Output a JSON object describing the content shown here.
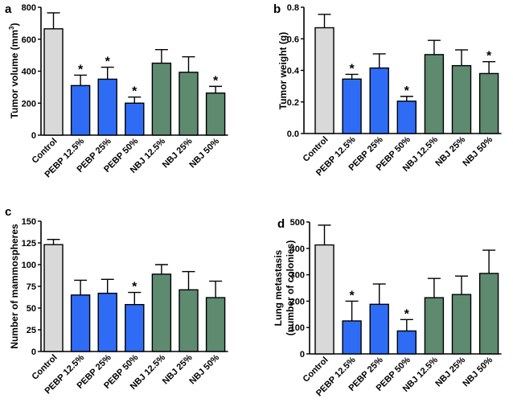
{
  "colors": {
    "control": "#d9d9d9",
    "pebp": "#2e6cf6",
    "nbj": "#5e8a70"
  },
  "chart_data": [
    {
      "type": "bar",
      "panel": "a",
      "title": "",
      "xlabel": "",
      "ylabel": "Tumor volume (mm3)",
      "ylabel_main": "Tumor volume (mm",
      "ylabel_sup": "3",
      "ylabel_end": ")",
      "ylim": [
        0,
        800
      ],
      "yticks": [
        0,
        200,
        400,
        600,
        800
      ],
      "categories": [
        "Control",
        "PEBP 12.5%",
        "PEBP 25%",
        "PEBP 50%",
        "NBJ 12.5%",
        "NBJ 25%",
        "NBJ 50%"
      ],
      "groups": [
        "control",
        "pebp",
        "pebp",
        "pebp",
        "nbj",
        "nbj",
        "nbj"
      ],
      "values": [
        665,
        310,
        350,
        200,
        450,
        393,
        263
      ],
      "errors": [
        100,
        65,
        75,
        38,
        85,
        97,
        42
      ],
      "significant": [
        false,
        true,
        true,
        true,
        false,
        false,
        true
      ]
    },
    {
      "type": "bar",
      "panel": "b",
      "title": "",
      "xlabel": "",
      "ylabel": "Tumor weight (g)",
      "ylim": [
        0,
        0.8
      ],
      "yticks": [
        0.0,
        0.2,
        0.4,
        0.6,
        0.8
      ],
      "ytick_labels": [
        "0.0",
        "0.2",
        "0.4",
        "0.6",
        "0.8"
      ],
      "categories": [
        "Control",
        "PEBP 12.5%",
        "PEBP 25%",
        "PEBP 50%",
        "NBJ 12.5%",
        "NBJ 25%",
        "NBJ 50%"
      ],
      "groups": [
        "control",
        "pebp",
        "pebp",
        "pebp",
        "nbj",
        "nbj",
        "nbj"
      ],
      "values": [
        0.67,
        0.345,
        0.415,
        0.205,
        0.5,
        0.43,
        0.38
      ],
      "errors": [
        0.085,
        0.03,
        0.09,
        0.03,
        0.09,
        0.1,
        0.075
      ],
      "significant": [
        false,
        true,
        false,
        true,
        false,
        false,
        true
      ]
    },
    {
      "type": "bar",
      "panel": "c",
      "title": "",
      "xlabel": "",
      "ylabel": "Number of mammospheres",
      "ylim": [
        0,
        150
      ],
      "yticks": [
        0,
        25,
        50,
        75,
        100,
        125,
        150
      ],
      "categories": [
        "Control",
        "PEBP 12.5%",
        "PEBP 25%",
        "PEBP 50%",
        "NBJ 12.5%",
        "NBJ 25%",
        "NBJ 50%"
      ],
      "groups": [
        "control",
        "pebp",
        "pebp",
        "pebp",
        "nbj",
        "nbj",
        "nbj"
      ],
      "values": [
        123,
        65,
        67,
        54,
        89,
        71,
        62
      ],
      "errors": [
        6,
        17,
        16,
        14,
        11,
        21,
        19
      ],
      "significant": [
        false,
        false,
        false,
        true,
        false,
        false,
        false
      ]
    },
    {
      "type": "bar",
      "panel": "d",
      "title": "",
      "xlabel": "",
      "ylabel": "Lung metastasis (number of colonies)",
      "ylabel_line1": "Lung metastasis",
      "ylabel_line2": "(number of colonies)",
      "ylim": [
        0,
        500
      ],
      "yticks": [
        0,
        100,
        200,
        300,
        400,
        500
      ],
      "categories": [
        "Control",
        "PEBP 12.5%",
        "PEBP 25%",
        "PEBP 50%",
        "NBJ 12.5%",
        "NBJ 25%",
        "NBJ 50%"
      ],
      "groups": [
        "control",
        "pebp",
        "pebp",
        "pebp",
        "nbj",
        "nbj",
        "nbj"
      ],
      "values": [
        413,
        125,
        188,
        87,
        213,
        225,
        305
      ],
      "errors": [
        75,
        75,
        77,
        43,
        73,
        70,
        88
      ],
      "significant": [
        false,
        true,
        false,
        true,
        false,
        false,
        false
      ]
    }
  ],
  "star_symbol": "*"
}
